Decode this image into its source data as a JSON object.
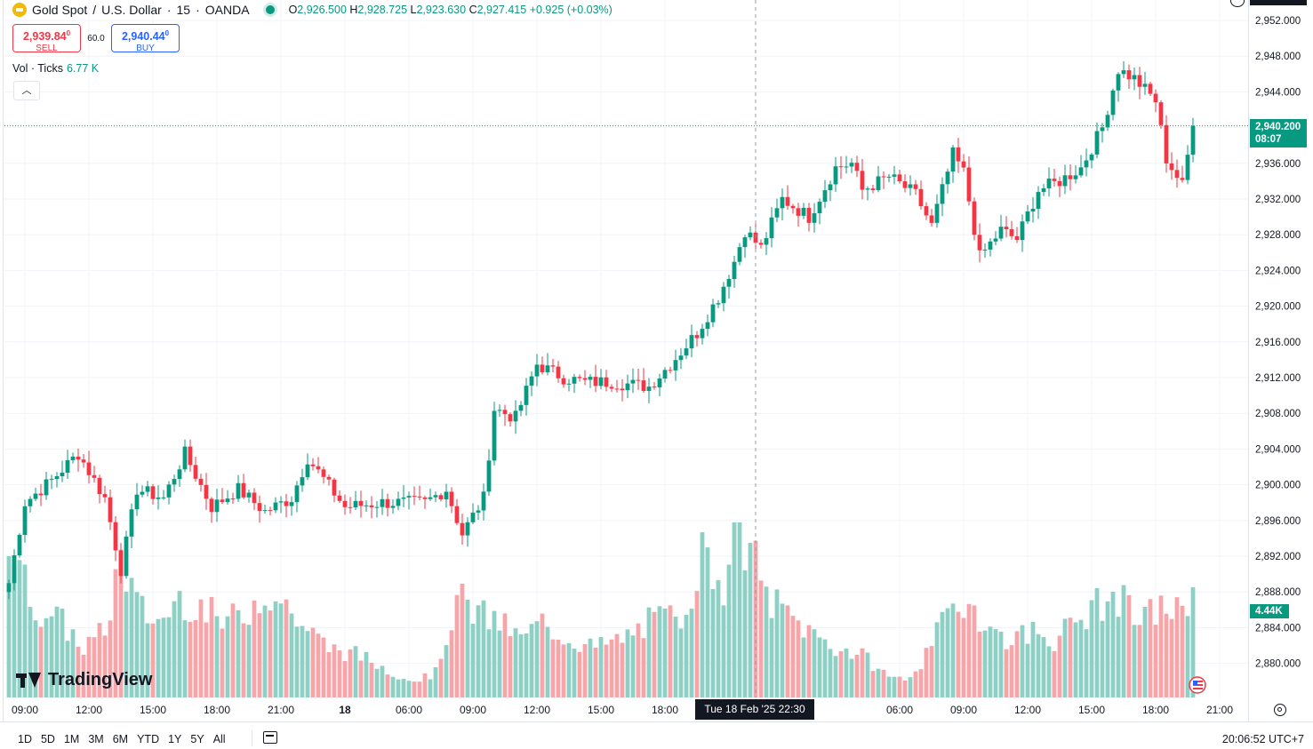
{
  "header": {
    "symbol": "Gold Spot",
    "quote": "U.S. Dollar",
    "interval": "15",
    "broker": "OANDA",
    "open_label": "O",
    "open": "2,926.500",
    "high_label": "H",
    "high": "2,928.725",
    "low_label": "L",
    "low": "2,923.630",
    "close_label": "C",
    "close": "2,927.415",
    "change": "+0.925 (+0.03%)"
  },
  "trade": {
    "sell_price": "2,939.84",
    "sell_sup": "0",
    "sell_label": "SELL",
    "spread": "60.0",
    "buy_price": "2,940.44",
    "buy_sup": "0",
    "buy_label": "BUY"
  },
  "volume_legend": {
    "label": "Vol · Ticks",
    "value": "6.77 K"
  },
  "badges": {
    "last_price": "2,940.200",
    "countdown": "08:07",
    "last_volume": "4.44K",
    "crosshair_time": "Tue 18 Feb '25   22:30"
  },
  "ranges": [
    "1D",
    "5D",
    "1M",
    "3M",
    "6M",
    "YTD",
    "1Y",
    "5Y",
    "All"
  ],
  "clock": "20:06:52 UTC+7",
  "brand": "TradingView",
  "icons": [
    "gold-symbol-icon",
    "market-open-dot-icon",
    "chevron-up-icon",
    "calendar-icon",
    "settings-icon",
    "clock-icon",
    "flag-icon"
  ],
  "colors": {
    "up": "#089981",
    "down": "#f23645",
    "vol_up": "#8fd0c6",
    "vol_down": "#f5a6aa"
  },
  "chart_data": {
    "type": "candlestick",
    "ylim": [
      2876.0,
      2954.0
    ],
    "y_ticks": [
      "2,952.000",
      "2,948.000",
      "2,944.000",
      "2,940.000",
      "2,936.000",
      "2,932.000",
      "2,928.000",
      "2,924.000",
      "2,920.000",
      "2,916.000",
      "2,912.000",
      "2,908.000",
      "2,904.000",
      "2,900.000",
      "2,896.000",
      "2,892.000",
      "2,888.000",
      "2,884.000",
      "2,880.000"
    ],
    "y_tick_values": [
      2952,
      2948,
      2944,
      2940,
      2936,
      2932,
      2928,
      2924,
      2920,
      2916,
      2912,
      2908,
      2904,
      2900,
      2896,
      2892,
      2888,
      2884,
      2880
    ],
    "x_ticks": [
      {
        "label": "09:00",
        "bar": 3
      },
      {
        "label": "12:00",
        "bar": 15
      },
      {
        "label": "15:00",
        "bar": 27
      },
      {
        "label": "18:00",
        "bar": 39
      },
      {
        "label": "21:00",
        "bar": 51
      },
      {
        "label": "18",
        "bar": 63
      },
      {
        "label": "06:00",
        "bar": 75
      },
      {
        "label": "09:00",
        "bar": 87
      },
      {
        "label": "12:00",
        "bar": 99
      },
      {
        "label": "15:00",
        "bar": 111
      },
      {
        "label": "18:00",
        "bar": 123
      },
      {
        "label": "06:00",
        "bar": 167
      },
      {
        "label": "09:00",
        "bar": 179
      },
      {
        "label": "12:00",
        "bar": 191
      },
      {
        "label": "15:00",
        "bar": 203
      },
      {
        "label": "18:00",
        "bar": 215
      },
      {
        "label": "21:00",
        "bar": 227
      }
    ],
    "crosshair_bar": 140,
    "last_price_value": 2940.2,
    "series": [
      {
        "name": "Price",
        "key_points": [
          [
            0,
            2889.0
          ],
          [
            3,
            2898.0
          ],
          [
            8,
            2900.5
          ],
          [
            13,
            2903.5
          ],
          [
            18,
            2898.5
          ],
          [
            21,
            2890.5
          ],
          [
            24,
            2899.5
          ],
          [
            29,
            2898.5
          ],
          [
            33,
            2903.5
          ],
          [
            38,
            2897.5
          ],
          [
            43,
            2899.5
          ],
          [
            48,
            2897.0
          ],
          [
            53,
            2898.5
          ],
          [
            56,
            2903.0
          ],
          [
            63,
            2897.5
          ],
          [
            70,
            2898.0
          ],
          [
            78,
            2898.0
          ],
          [
            82,
            2899.5
          ],
          [
            85,
            2894.5
          ],
          [
            89,
            2898.5
          ],
          [
            91,
            2908.5
          ],
          [
            95,
            2907.5
          ],
          [
            99,
            2913.5
          ],
          [
            104,
            2912.0
          ],
          [
            108,
            2911.5
          ],
          [
            113,
            2911.5
          ],
          [
            120,
            2911.0
          ],
          [
            124,
            2913.5
          ],
          [
            129,
            2917.0
          ],
          [
            133,
            2921.0
          ],
          [
            136,
            2925.0
          ],
          [
            138,
            2928.5
          ],
          [
            141,
            2926.5
          ],
          [
            145,
            2932.0
          ],
          [
            150,
            2930.0
          ],
          [
            155,
            2935.5
          ],
          [
            158,
            2936.0
          ],
          [
            160,
            2933.0
          ],
          [
            165,
            2934.5
          ],
          [
            170,
            2932.5
          ],
          [
            173,
            2929.0
          ],
          [
            177,
            2937.0
          ],
          [
            179,
            2935.0
          ],
          [
            182,
            2925.5
          ],
          [
            186,
            2928.5
          ],
          [
            189,
            2927.5
          ],
          [
            193,
            2933.0
          ],
          [
            197,
            2934.0
          ],
          [
            201,
            2935.5
          ],
          [
            205,
            2940.0
          ],
          [
            208,
            2946.5
          ],
          [
            211,
            2945.5
          ],
          [
            215,
            2943.0
          ],
          [
            217,
            2936.5
          ],
          [
            220,
            2933.5
          ],
          [
            222,
            2940.2
          ]
        ]
      },
      {
        "name": "Vol",
        "key_points": [
          [
            0,
            0.95
          ],
          [
            2,
            0.75
          ],
          [
            5,
            0.55
          ],
          [
            10,
            0.45
          ],
          [
            14,
            0.3
          ],
          [
            18,
            0.4
          ],
          [
            21,
            0.85
          ],
          [
            24,
            0.55
          ],
          [
            28,
            0.45
          ],
          [
            32,
            0.6
          ],
          [
            36,
            0.55
          ],
          [
            40,
            0.45
          ],
          [
            44,
            0.5
          ],
          [
            48,
            0.65
          ],
          [
            52,
            0.55
          ],
          [
            56,
            0.4
          ],
          [
            60,
            0.3
          ],
          [
            66,
            0.25
          ],
          [
            72,
            0.15
          ],
          [
            76,
            0.1
          ],
          [
            80,
            0.15
          ],
          [
            84,
            0.6
          ],
          [
            88,
            0.5
          ],
          [
            92,
            0.45
          ],
          [
            96,
            0.35
          ],
          [
            100,
            0.45
          ],
          [
            105,
            0.35
          ],
          [
            110,
            0.3
          ],
          [
            115,
            0.35
          ],
          [
            120,
            0.45
          ],
          [
            126,
            0.5
          ],
          [
            130,
            0.85
          ],
          [
            134,
            0.7
          ],
          [
            136,
            1.0
          ],
          [
            139,
            0.9
          ],
          [
            142,
            0.6
          ],
          [
            146,
            0.5
          ],
          [
            150,
            0.4
          ],
          [
            155,
            0.3
          ],
          [
            160,
            0.25
          ],
          [
            164,
            0.15
          ],
          [
            168,
            0.1
          ],
          [
            172,
            0.25
          ],
          [
            176,
            0.5
          ],
          [
            180,
            0.6
          ],
          [
            184,
            0.4
          ],
          [
            188,
            0.35
          ],
          [
            192,
            0.4
          ],
          [
            196,
            0.35
          ],
          [
            200,
            0.45
          ],
          [
            204,
            0.55
          ],
          [
            208,
            0.6
          ],
          [
            212,
            0.45
          ],
          [
            216,
            0.55
          ],
          [
            220,
            0.5
          ],
          [
            222,
            0.65
          ]
        ]
      }
    ]
  }
}
